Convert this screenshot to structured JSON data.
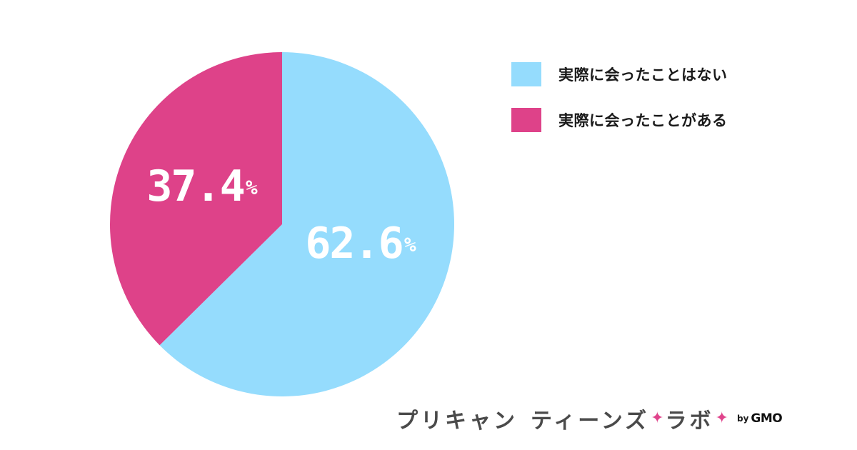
{
  "chart_data": {
    "type": "pie",
    "categories": [
      "実際に会ったことはない",
      "実際に会ったことがある"
    ],
    "values": [
      62.6,
      37.4
    ],
    "data_labels": [
      "62.6",
      "37.4"
    ],
    "unit": "%",
    "colors": [
      "#95dcfd",
      "#de4289"
    ],
    "start_angle": "12 o'clock",
    "direction": "clockwise",
    "legend_position": "top-right"
  },
  "brand": {
    "name_part1": "プリキャン",
    "name_part2": "ティーンズ",
    "sparkle_glyph": "✦",
    "name_part3": "ラボ",
    "by": "by",
    "company": "GMO"
  }
}
